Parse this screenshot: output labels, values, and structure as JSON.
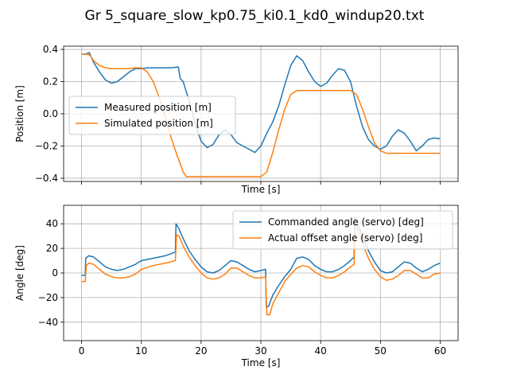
{
  "chart_data": [
    {
      "type": "line",
      "title": "Gr 5_square_slow_kp0.75_ki0.1_kd0_windup20.txt",
      "xlabel": "Time [s]",
      "ylabel": "Position [m]",
      "xlim": [
        -3,
        63
      ],
      "ylim": [
        -0.42,
        0.42
      ],
      "xticks": [
        0,
        10,
        20,
        30,
        40,
        50,
        60
      ],
      "yticks": [
        0.4,
        0.2,
        0.0,
        -0.2,
        -0.4
      ],
      "ytick_labels": [
        "0.4",
        "0.2",
        "0.0",
        "−0.2",
        "−0.4"
      ],
      "grid": true,
      "legend": "center-left",
      "series": [
        {
          "name": "Measured position [m]",
          "color": "#1f77b4",
          "x": [
            0,
            0.5,
            1,
            1.3,
            2,
            3,
            4,
            5,
            6,
            7,
            8,
            9,
            10,
            11,
            12,
            13,
            14,
            15,
            16,
            16.2,
            16.5,
            17,
            18,
            19,
            20,
            21,
            22,
            23,
            24,
            25,
            26,
            27,
            28,
            29,
            30,
            31,
            32,
            33,
            34,
            35,
            36,
            37,
            38,
            39,
            40,
            41,
            42,
            43,
            44,
            45,
            46,
            47,
            48,
            49,
            50,
            51,
            52,
            53,
            54,
            55,
            56,
            57,
            58,
            59,
            60
          ],
          "y": [
            0.37,
            0.37,
            0.375,
            0.38,
            0.32,
            0.26,
            0.21,
            0.19,
            0.2,
            0.23,
            0.26,
            0.28,
            0.28,
            0.285,
            0.285,
            0.285,
            0.285,
            0.285,
            0.29,
            0.29,
            0.22,
            0.2,
            0.08,
            -0.06,
            -0.17,
            -0.21,
            -0.19,
            -0.13,
            -0.1,
            -0.13,
            -0.18,
            -0.2,
            -0.22,
            -0.24,
            -0.2,
            -0.12,
            -0.05,
            0.05,
            0.18,
            0.3,
            0.36,
            0.33,
            0.26,
            0.2,
            0.17,
            0.19,
            0.24,
            0.28,
            0.27,
            0.2,
            0.05,
            -0.08,
            -0.16,
            -0.2,
            -0.22,
            -0.2,
            -0.14,
            -0.1,
            -0.12,
            -0.17,
            -0.23,
            -0.2,
            -0.16,
            -0.15,
            -0.155
          ]
        },
        {
          "name": "Simulated position [m]",
          "color": "#ff7f0e",
          "x": [
            0,
            0.5,
            1,
            1.5,
            2,
            3,
            4,
            5,
            6,
            7,
            8,
            9,
            10,
            11,
            12,
            13,
            14,
            15,
            16,
            17,
            17.5,
            18,
            20,
            22,
            24,
            26,
            28,
            30,
            31,
            32,
            33,
            34,
            35,
            36,
            37,
            38,
            40,
            42,
            44,
            45,
            46,
            47,
            48,
            49,
            50,
            51,
            52,
            54,
            56,
            58,
            60
          ],
          "y": [
            0.37,
            0.37,
            0.37,
            0.36,
            0.33,
            0.3,
            0.285,
            0.28,
            0.28,
            0.28,
            0.28,
            0.285,
            0.285,
            0.26,
            0.2,
            0.1,
            -0.02,
            -0.15,
            -0.26,
            -0.36,
            -0.39,
            -0.39,
            -0.39,
            -0.39,
            -0.39,
            -0.39,
            -0.39,
            -0.39,
            -0.36,
            -0.24,
            -0.1,
            0.03,
            0.12,
            0.145,
            0.145,
            0.145,
            0.145,
            0.145,
            0.145,
            0.145,
            0.12,
            0.03,
            -0.08,
            -0.18,
            -0.23,
            -0.245,
            -0.245,
            -0.245,
            -0.245,
            -0.245,
            -0.245
          ]
        }
      ]
    },
    {
      "type": "line",
      "xlabel": "Time [s]",
      "ylabel": "Angle [deg]",
      "xlim": [
        -3,
        63
      ],
      "ylim": [
        -55,
        55
      ],
      "xticks": [
        0,
        10,
        20,
        30,
        40,
        50,
        60
      ],
      "yticks": [
        40,
        20,
        0,
        -20,
        -40
      ],
      "ytick_labels": [
        "40",
        "20",
        "0",
        "−20",
        "−40"
      ],
      "grid": true,
      "legend": "top-right",
      "series": [
        {
          "name": "Commanded angle (servo) [deg]",
          "color": "#1f77b4",
          "x": [
            0,
            0.6,
            0.7,
            1.2,
            2,
            3,
            4,
            5,
            6,
            7,
            8,
            9,
            10,
            12,
            14,
            15.7,
            15.8,
            16.3,
            17,
            18,
            19,
            20,
            21,
            22,
            23,
            24,
            25,
            26,
            27,
            28,
            29,
            30,
            30.8,
            30.9,
            31.3,
            32,
            33,
            34,
            35,
            36,
            37,
            38,
            39,
            40,
            41,
            42,
            43,
            44,
            45,
            45.6,
            45.7,
            46,
            47,
            48,
            49,
            50,
            51,
            52,
            53,
            54,
            55,
            56,
            57,
            58,
            59,
            60
          ],
          "y": [
            -2,
            -2,
            12,
            14,
            13,
            9,
            5,
            3,
            2,
            3,
            5,
            7,
            10,
            12,
            14,
            17,
            40,
            36,
            28,
            18,
            11,
            5,
            1,
            0,
            2,
            6,
            10,
            9,
            6,
            3,
            1,
            2,
            3,
            -28,
            -27,
            -18,
            -10,
            -3,
            3,
            12,
            13,
            11,
            6,
            3,
            1,
            1,
            3,
            6,
            10,
            13,
            45,
            42,
            30,
            18,
            9,
            2,
            0,
            1,
            5,
            9,
            8,
            4,
            1,
            3,
            6,
            8
          ]
        },
        {
          "name": "Actual offset angle (servo) [deg]",
          "color": "#ff7f0e",
          "x": [
            0,
            0.6,
            0.8,
            1.2,
            2,
            3,
            4,
            5,
            6,
            7,
            8,
            9,
            10,
            12,
            14,
            15.7,
            15.9,
            16.3,
            17,
            18,
            19,
            20,
            21,
            22,
            23,
            24,
            25,
            26,
            27,
            28,
            29,
            30,
            30.8,
            31,
            31.5,
            32,
            33,
            34,
            35,
            36,
            37,
            38,
            39,
            40,
            41,
            42,
            43,
            44,
            45,
            45.6,
            45.8,
            46.1,
            47,
            48,
            49,
            50,
            51,
            52,
            53,
            54,
            55,
            56,
            57,
            58,
            59,
            60
          ],
          "y": [
            -7,
            -7,
            6,
            8,
            7,
            3,
            -1,
            -3,
            -4,
            -4,
            -3,
            -1,
            3,
            6,
            8,
            10,
            31,
            30,
            22,
            13,
            6,
            0,
            -4,
            -5,
            -4,
            -1,
            4,
            4,
            1,
            -2,
            -4,
            -4,
            -3,
            -34,
            -34,
            -25,
            -16,
            -7,
            -1,
            4,
            6,
            5,
            1,
            -2,
            -4,
            -4,
            -2,
            1,
            5,
            7,
            40,
            37,
            24,
            12,
            3,
            -3,
            -6,
            -5,
            -2,
            2,
            2,
            -1,
            -4,
            -4,
            -1,
            0
          ]
        }
      ]
    }
  ]
}
